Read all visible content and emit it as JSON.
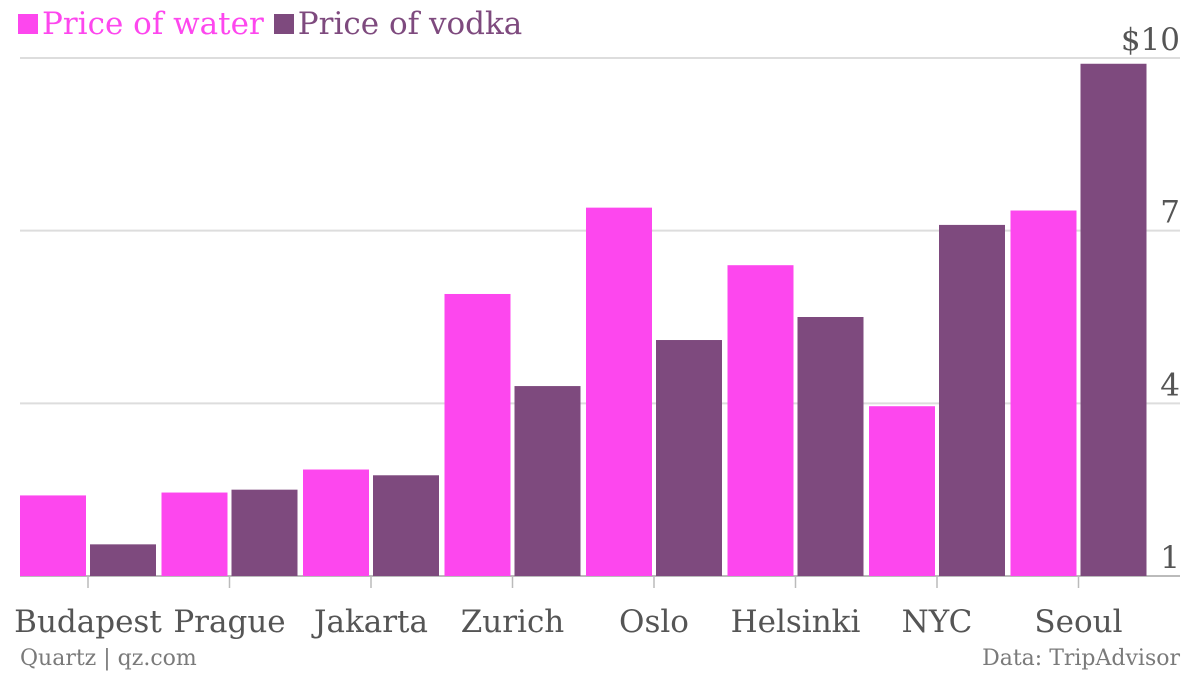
{
  "colors": {
    "water": "#fd47ee",
    "vodka": "#7e4a7e",
    "grid": "#dddddd",
    "axis": "#bbbbbb",
    "text": "#555555"
  },
  "footer": {
    "source_left": "Quartz | qz.com",
    "source_right": "Data: TripAdvisor"
  },
  "chart_data": {
    "type": "bar",
    "categories": [
      "Budapest",
      "Prague",
      "Jakarta",
      "Zurich",
      "Oslo",
      "Helsinki",
      "NYC",
      "Seoul"
    ],
    "series": [
      {
        "name": "Price of water",
        "values": [
          2.4,
          2.45,
          2.85,
          5.9,
          7.4,
          6.4,
          3.95,
          7.35
        ]
      },
      {
        "name": "Price of vodka",
        "values": [
          1.55,
          2.5,
          2.75,
          4.3,
          5.1,
          5.5,
          7.1,
          9.9
        ]
      }
    ],
    "y_ticks": [
      {
        "value": 1,
        "label": "1"
      },
      {
        "value": 4,
        "label": "4"
      },
      {
        "value": 7,
        "label": "7"
      },
      {
        "value": 10,
        "label": "$10"
      }
    ],
    "ylim": [
      1,
      10
    ],
    "y_axis_side": "right",
    "grid": true,
    "legend_position": "top-left",
    "title": "",
    "xlabel": "",
    "ylabel": ""
  }
}
